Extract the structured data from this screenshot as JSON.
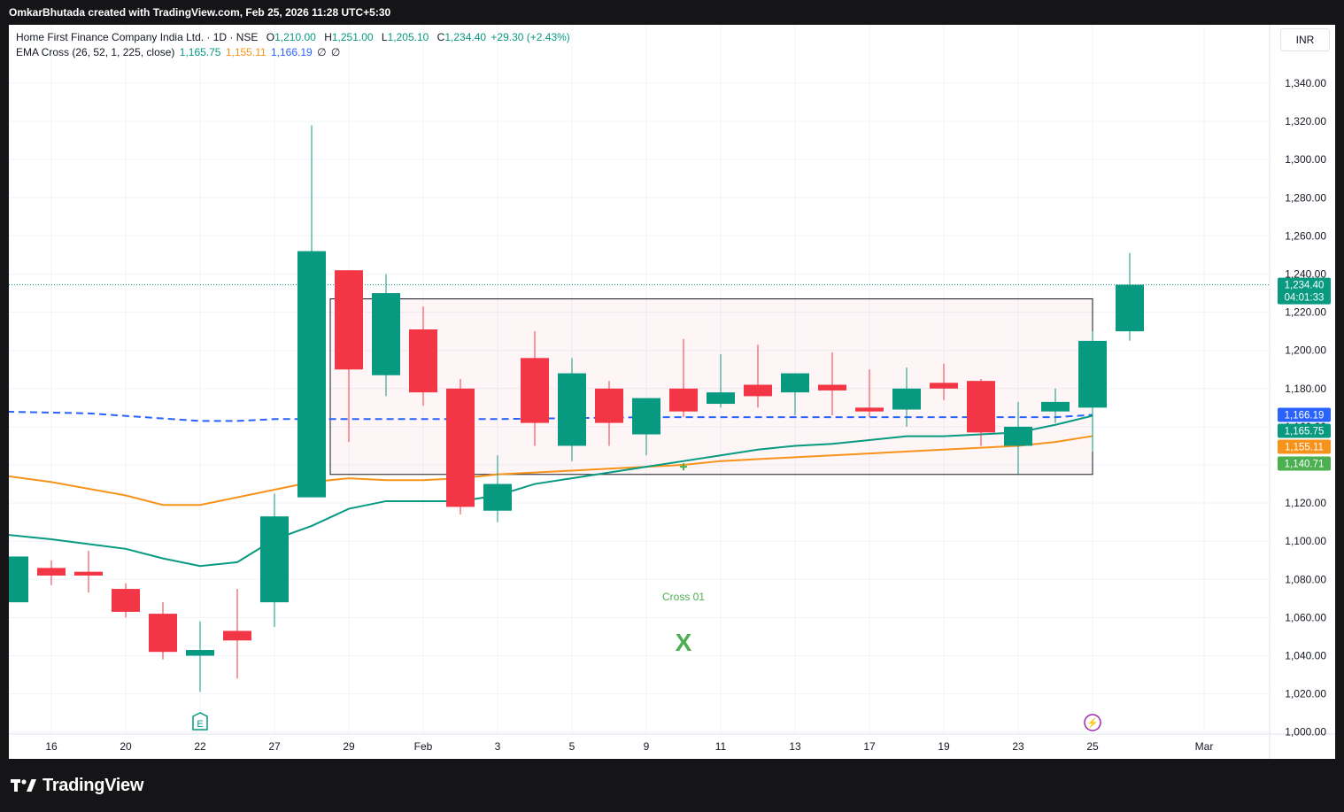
{
  "header": {
    "credit": "OmkarBhutada created with TradingView.com, Feb 25, 2026 11:28 UTC+5:30"
  },
  "legend": {
    "symbol_line": "Home First Finance Company India Ltd. · 1D · NSE",
    "open_key": "O",
    "open": "1,210.00",
    "high_key": "H",
    "high": "1,251.00",
    "low_key": "L",
    "low": "1,205.10",
    "close_key": "C",
    "close": "1,234.40",
    "change": "+29.30 (+2.43%)",
    "indicator_label": "EMA Cross (26, 52, 1, 225, close)",
    "ema_fast": "1,165.75",
    "ema_slow": "1,155.11",
    "ema_long": "1,166.19",
    "hidden_1": "∅",
    "hidden_2": "∅"
  },
  "currency": "INR",
  "footer": {
    "brand": "TradingView"
  },
  "chart_data": {
    "type": "candlestick",
    "title": "Home First Finance Company India Ltd. · 1D · NSE",
    "colors": {
      "up": "#089981",
      "down": "#f23645",
      "ema_fast": "#089981",
      "ema_slow": "#f7931a",
      "ema_long": "#2962ff"
    },
    "y_ticks": [
      "1,000.00",
      "1,020.00",
      "1,040.00",
      "1,060.00",
      "1,080.00",
      "1,100.00",
      "1,120.00",
      "1,140.00",
      "1,160.00",
      "1,180.00",
      "1,200.00",
      "1,220.00",
      "1,240.00",
      "1,260.00",
      "1,280.00",
      "1,300.00",
      "1,320.00",
      "1,340.00"
    ],
    "ylim": [
      1000,
      1350
    ],
    "x_ticks": [
      {
        "label": "3",
        "bar": -0.5
      },
      {
        "label": "16",
        "bar": 1
      },
      {
        "label": "20",
        "bar": 3
      },
      {
        "label": "22",
        "bar": 5
      },
      {
        "label": "27",
        "bar": 7
      },
      {
        "label": "29",
        "bar": 9
      },
      {
        "label": "Feb",
        "bar": 11
      },
      {
        "label": "3",
        "bar": 13
      },
      {
        "label": "5",
        "bar": 15
      },
      {
        "label": "9",
        "bar": 17
      },
      {
        "label": "11",
        "bar": 19
      },
      {
        "label": "13",
        "bar": 21
      },
      {
        "label": "17",
        "bar": 23
      },
      {
        "label": "19",
        "bar": 25
      },
      {
        "label": "23",
        "bar": 27
      },
      {
        "label": "25",
        "bar": 29
      },
      {
        "label": "Mar",
        "bar": 32
      }
    ],
    "candles": [
      {
        "o": 1068,
        "h": 1092,
        "l": 1068,
        "c": 1092
      },
      {
        "o": 1086,
        "h": 1090,
        "l": 1077,
        "c": 1082
      },
      {
        "o": 1084,
        "h": 1095,
        "l": 1073,
        "c": 1082
      },
      {
        "o": 1075,
        "h": 1078,
        "l": 1060,
        "c": 1063
      },
      {
        "o": 1062,
        "h": 1068,
        "l": 1038,
        "c": 1042
      },
      {
        "o": 1040,
        "h": 1058,
        "l": 1021,
        "c": 1043
      },
      {
        "o": 1053,
        "h": 1075,
        "l": 1028,
        "c": 1048
      },
      {
        "o": 1068,
        "h": 1125,
        "l": 1055,
        "c": 1113
      },
      {
        "o": 1123,
        "h": 1318,
        "l": 1123,
        "c": 1252
      },
      {
        "o": 1242,
        "h": 1242,
        "l": 1152,
        "c": 1190
      },
      {
        "o": 1187,
        "h": 1240,
        "l": 1176,
        "c": 1230
      },
      {
        "o": 1211,
        "h": 1223,
        "l": 1171,
        "c": 1178
      },
      {
        "o": 1180,
        "h": 1185,
        "l": 1114,
        "c": 1118
      },
      {
        "o": 1116,
        "h": 1145,
        "l": 1110,
        "c": 1130
      },
      {
        "o": 1196,
        "h": 1210,
        "l": 1150,
        "c": 1162
      },
      {
        "o": 1150,
        "h": 1196,
        "l": 1142,
        "c": 1188
      },
      {
        "o": 1180,
        "h": 1184,
        "l": 1150,
        "c": 1162
      },
      {
        "o": 1156,
        "h": 1175,
        "l": 1145,
        "c": 1175
      },
      {
        "o": 1180,
        "h": 1206,
        "l": 1165,
        "c": 1168
      },
      {
        "o": 1172,
        "h": 1198,
        "l": 1170,
        "c": 1178
      },
      {
        "o": 1182,
        "h": 1203,
        "l": 1170,
        "c": 1176
      },
      {
        "o": 1178,
        "h": 1188,
        "l": 1166,
        "c": 1188
      },
      {
        "o": 1182,
        "h": 1199,
        "l": 1166,
        "c": 1179
      },
      {
        "o": 1170,
        "h": 1190,
        "l": 1165,
        "c": 1168
      },
      {
        "o": 1169,
        "h": 1191,
        "l": 1160,
        "c": 1180
      },
      {
        "o": 1183,
        "h": 1193,
        "l": 1174,
        "c": 1180
      },
      {
        "o": 1184,
        "h": 1185,
        "l": 1150,
        "c": 1157
      },
      {
        "o": 1150,
        "h": 1173,
        "l": 1135,
        "c": 1160
      },
      {
        "o": 1168,
        "h": 1180,
        "l": 1162,
        "c": 1173
      },
      {
        "o": 1170,
        "h": 1210,
        "l": 1147,
        "c": 1205
      },
      {
        "o": 1210,
        "h": 1251,
        "l": 1205.1,
        "c": 1234.4
      }
    ],
    "ema_fast": [
      {
        "bar": -0.5,
        "v": 1104
      },
      {
        "bar": 1,
        "v": 1101
      },
      {
        "bar": 3,
        "v": 1096
      },
      {
        "bar": 4,
        "v": 1091
      },
      {
        "bar": 5,
        "v": 1087
      },
      {
        "bar": 6,
        "v": 1089
      },
      {
        "bar": 7,
        "v": 1101
      },
      {
        "bar": 8,
        "v": 1108
      },
      {
        "bar": 9,
        "v": 1117
      },
      {
        "bar": 10,
        "v": 1121
      },
      {
        "bar": 11,
        "v": 1121
      },
      {
        "bar": 12,
        "v": 1121
      },
      {
        "bar": 13,
        "v": 1124
      },
      {
        "bar": 14,
        "v": 1130
      },
      {
        "bar": 15,
        "v": 1133
      },
      {
        "bar": 16,
        "v": 1136
      },
      {
        "bar": 17,
        "v": 1139
      },
      {
        "bar": 18,
        "v": 1142
      },
      {
        "bar": 19,
        "v": 1145
      },
      {
        "bar": 20,
        "v": 1148
      },
      {
        "bar": 21,
        "v": 1150
      },
      {
        "bar": 22,
        "v": 1151
      },
      {
        "bar": 23,
        "v": 1153
      },
      {
        "bar": 24,
        "v": 1155
      },
      {
        "bar": 25,
        "v": 1155
      },
      {
        "bar": 26,
        "v": 1156
      },
      {
        "bar": 27,
        "v": 1157
      },
      {
        "bar": 28,
        "v": 1161
      },
      {
        "bar": 29,
        "v": 1165.75
      }
    ],
    "ema_slow": [
      {
        "bar": -0.5,
        "v": 1135
      },
      {
        "bar": 1,
        "v": 1131
      },
      {
        "bar": 3,
        "v": 1124
      },
      {
        "bar": 4,
        "v": 1119
      },
      {
        "bar": 5,
        "v": 1119
      },
      {
        "bar": 6,
        "v": 1123
      },
      {
        "bar": 7,
        "v": 1127
      },
      {
        "bar": 8,
        "v": 1131
      },
      {
        "bar": 9,
        "v": 1133
      },
      {
        "bar": 10,
        "v": 1132
      },
      {
        "bar": 11,
        "v": 1132
      },
      {
        "bar": 12,
        "v": 1133
      },
      {
        "bar": 13,
        "v": 1135
      },
      {
        "bar": 14,
        "v": 1136
      },
      {
        "bar": 15,
        "v": 1137
      },
      {
        "bar": 16,
        "v": 1138
      },
      {
        "bar": 17,
        "v": 1139
      },
      {
        "bar": 18,
        "v": 1140
      },
      {
        "bar": 19,
        "v": 1142
      },
      {
        "bar": 20,
        "v": 1143
      },
      {
        "bar": 21,
        "v": 1144
      },
      {
        "bar": 22,
        "v": 1145
      },
      {
        "bar": 23,
        "v": 1146
      },
      {
        "bar": 24,
        "v": 1147
      },
      {
        "bar": 25,
        "v": 1148
      },
      {
        "bar": 26,
        "v": 1149
      },
      {
        "bar": 27,
        "v": 1150
      },
      {
        "bar": 28,
        "v": 1152
      },
      {
        "bar": 29,
        "v": 1155.11
      }
    ],
    "ema_long": [
      {
        "bar": -0.5,
        "v": 1168
      },
      {
        "bar": 2,
        "v": 1167
      },
      {
        "bar": 5,
        "v": 1163
      },
      {
        "bar": 6,
        "v": 1163
      },
      {
        "bar": 7,
        "v": 1164
      },
      {
        "bar": 9,
        "v": 1164
      },
      {
        "bar": 13,
        "v": 1164
      },
      {
        "bar": 17,
        "v": 1165
      },
      {
        "bar": 21,
        "v": 1165
      },
      {
        "bar": 25,
        "v": 1165
      },
      {
        "bar": 28,
        "v": 1165
      },
      {
        "bar": 29,
        "v": 1166.19
      }
    ],
    "rectangle": {
      "bar_start": 8.5,
      "bar_end": 29,
      "top": 1227,
      "bottom": 1135
    },
    "price_labels": [
      {
        "text": "1,234.40",
        "value": 1234.4,
        "color": "#089981",
        "sub": "04:01:33"
      },
      {
        "text": "1,166.19",
        "value": 1166.19,
        "color": "#2962ff"
      },
      {
        "text": "1,165.75",
        "value": 1165.75,
        "color": "#089981"
      },
      {
        "text": "1,155.11",
        "value": 1155.11,
        "color": "#f7931a"
      },
      {
        "text": "1,140.71",
        "value": 1140.71,
        "color": "#4caf50"
      }
    ],
    "cross_annotation": {
      "label": "Cross 01",
      "marker": "X",
      "bar": 18,
      "value": 1139
    },
    "event_markers": [
      {
        "label": "E",
        "bar": 5
      },
      {
        "label": "⚡",
        "bar": 29
      }
    ]
  }
}
